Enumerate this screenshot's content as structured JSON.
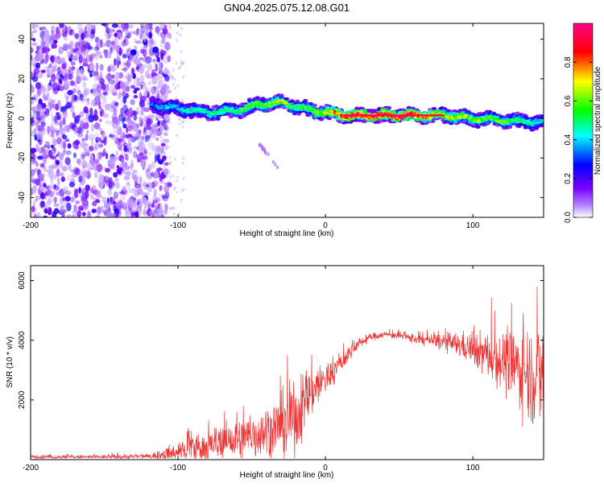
{
  "figure": {
    "title": "GN04.2025.075.12.08.G01"
  },
  "colorbar": {
    "label": "Normalized spectral amplitude",
    "ticks": [
      "0.0",
      "0.2",
      "0.4",
      "0.6",
      "0.8"
    ],
    "tick_values": [
      0.0,
      0.2,
      0.4,
      0.6,
      0.8
    ]
  },
  "chart_data": [
    {
      "type": "heatmap",
      "title": "GN04.2025.075.12.08.G01",
      "xlabel": "Height of straight line (km)",
      "ylabel": "Frequency (Hz)",
      "xlim": [
        -200,
        148
      ],
      "ylim": [
        -50,
        48
      ],
      "xticks": [
        -200,
        -100,
        0,
        100
      ],
      "xtick_labels": [
        "-200",
        "-100",
        "0",
        "100"
      ],
      "yticks": [
        -40,
        -20,
        0,
        20,
        40
      ],
      "ytick_labels": [
        "-40",
        "-20",
        "0",
        "20",
        "40"
      ],
      "colormap": [
        "#ffffff",
        "#7b00ff",
        "#0000ff",
        "#00ffff",
        "#00ff00",
        "#ffff00",
        "#ff0000",
        "#ff0088"
      ],
      "noise_region_x": [
        -200,
        -110
      ],
      "ridge": {
        "name": "dominant frequency ridge",
        "x": [
          -118,
          -100,
          -80,
          -60,
          -45,
          -30,
          -20,
          -10,
          0,
          15,
          40,
          60,
          80,
          100,
          120,
          148
        ],
        "y": [
          7,
          5,
          3,
          4,
          7,
          8,
          6,
          4,
          3,
          1.5,
          1.5,
          1.5,
          1.5,
          0,
          -1,
          -2
        ],
        "amplitude": [
          0.35,
          0.45,
          0.5,
          0.55,
          0.6,
          0.7,
          0.55,
          0.6,
          0.7,
          0.95,
          0.95,
          0.95,
          0.7,
          0.65,
          0.6,
          0.45
        ]
      },
      "secondary_feature": {
        "x": [
          -45,
          -40,
          -32
        ],
        "y": [
          -13,
          -18,
          -25
        ]
      }
    },
    {
      "type": "line",
      "xlabel": "Height of straight line (km)",
      "ylabel": "SNR (10 * v/v)",
      "xlim": [
        -200,
        148
      ],
      "ylim": [
        0,
        6500
      ],
      "xticks": [
        -200,
        -100,
        0,
        100
      ],
      "xtick_labels": [
        "-200",
        "-100",
        "0",
        "100"
      ],
      "yticks": [
        2000,
        4000,
        6000
      ],
      "ytick_labels": [
        "2000",
        "4000",
        "6000"
      ],
      "color": "#ee3333",
      "series": [
        {
          "name": "SNR",
          "x": [
            -200,
            -150,
            -120,
            -110,
            -100,
            -80,
            -60,
            -40,
            -20,
            -10,
            0,
            10,
            20,
            30,
            40,
            50,
            60,
            70,
            80,
            90,
            100,
            110,
            120,
            130,
            140,
            148
          ],
          "mean": [
            90,
            90,
            110,
            160,
            280,
            450,
            650,
            950,
            1400,
            2300,
            2700,
            3200,
            3800,
            4100,
            4200,
            4150,
            4050,
            4000,
            3950,
            3850,
            3700,
            3500,
            3300,
            3100,
            2900,
            2700
          ],
          "spread": [
            60,
            60,
            80,
            150,
            350,
            500,
            650,
            800,
            1100,
            900,
            500,
            350,
            200,
            120,
            100,
            120,
            150,
            200,
            280,
            380,
            500,
            700,
            900,
            1200,
            1500,
            1700
          ]
        }
      ]
    }
  ]
}
